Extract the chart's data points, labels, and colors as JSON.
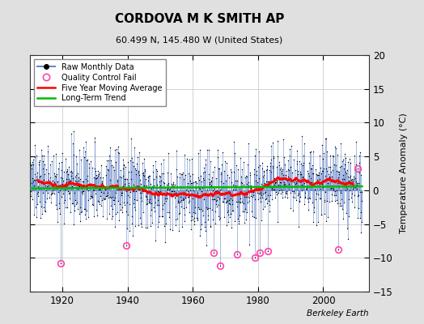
{
  "title": "CORDOVA M K SMITH AP",
  "subtitle": "60.499 N, 145.480 W (United States)",
  "ylabel": "Temperature Anomaly (°C)",
  "watermark": "Berkeley Earth",
  "xlim": [
    1910,
    2014
  ],
  "ylim": [
    -15,
    20
  ],
  "yticks": [
    -15,
    -10,
    -5,
    0,
    5,
    10,
    15,
    20
  ],
  "xticks": [
    1920,
    1940,
    1960,
    1980,
    2000
  ],
  "background_color": "#e0e0e0",
  "plot_bg_color": "#ffffff",
  "raw_line_color": "#6688cc",
  "raw_marker_color": "#000000",
  "qc_fail_color": "#ff44aa",
  "moving_avg_color": "#ff0000",
  "trend_color": "#00bb00",
  "legend_items": [
    "Raw Monthly Data",
    "Quality Control Fail",
    "Five Year Moving Average",
    "Long-Term Trend"
  ],
  "seed": 137,
  "start_year": 1910,
  "end_year": 2012,
  "qc_fail_times": [
    1919.5,
    1939.5,
    1966.5,
    1968.5,
    1973.5,
    1979.0,
    1980.5,
    1983.0,
    2004.5,
    2010.5
  ],
  "qc_fail_values": [
    -10.8,
    -8.2,
    -9.2,
    -11.2,
    -9.5,
    -10.0,
    -9.2,
    -9.0,
    -8.8,
    3.2
  ]
}
